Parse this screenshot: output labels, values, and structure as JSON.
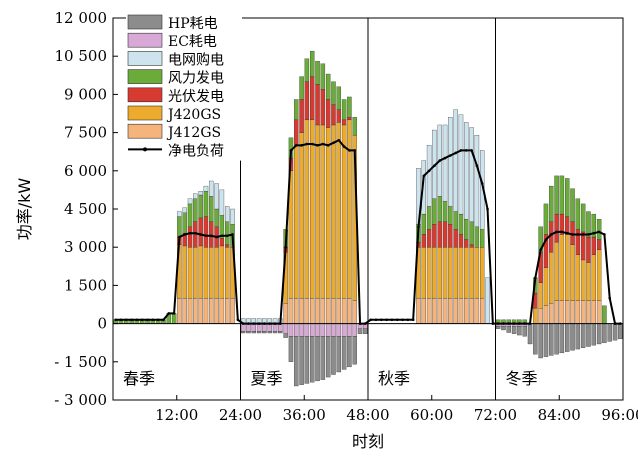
{
  "chart_data": {
    "type": "bar",
    "xlabel": "时刻",
    "ylabel": "功率/kW",
    "xlim": [
      0,
      96
    ],
    "ylim": [
      -3000,
      12000
    ],
    "x_ticks": [
      12,
      24,
      36,
      48,
      60,
      72,
      84,
      96
    ],
    "x_tick_labels": [
      "12:00",
      "24:00",
      "36:00",
      "48:00",
      "60:00",
      "72:00",
      "84:00",
      "96:00"
    ],
    "y_ticks": [
      -3000,
      -1500,
      0,
      1500,
      3000,
      4500,
      6000,
      7500,
      9000,
      10500,
      12000
    ],
    "y_tick_labels": [
      "- 3 000",
      "- 1 500",
      "0",
      "1 500",
      "3 000",
      "4 500",
      "6 000",
      "7 500",
      "9 000",
      "10 500",
      "12 000"
    ],
    "season_dividers": [
      24,
      48,
      72
    ],
    "seasons": [
      "春季",
      "夏季",
      "秋季",
      "冬季"
    ],
    "legend_position": "top-left",
    "series": [
      {
        "name": "HP耗电",
        "color": "#8c8c8c",
        "values": [
          0,
          0,
          0,
          0,
          0,
          0,
          0,
          0,
          0,
          0,
          0,
          0,
          0,
          0,
          0,
          0,
          0,
          0,
          0,
          0,
          0,
          0,
          0,
          0,
          -70,
          -70,
          -70,
          -70,
          -70,
          -70,
          -70,
          -70,
          -150,
          -1000,
          -1950,
          -1900,
          -1850,
          -1800,
          -1750,
          -1700,
          -1600,
          -1500,
          -1400,
          -1300,
          -1200,
          -1100,
          -200,
          -200,
          0,
          0,
          0,
          0,
          0,
          0,
          0,
          0,
          0,
          0,
          0,
          0,
          0,
          0,
          0,
          0,
          0,
          0,
          0,
          0,
          0,
          0,
          0,
          0,
          -100,
          -150,
          -250,
          -300,
          -350,
          -400,
          -800,
          -1200,
          -1350,
          -1300,
          -1250,
          -1200,
          -1150,
          -1100,
          -1050,
          -1000,
          -950,
          -900,
          -850,
          -800,
          -750,
          -700,
          -650,
          -600
        ]
      },
      {
        "name": "EC耗电",
        "color": "#d8a8d6",
        "values": [
          0,
          0,
          0,
          0,
          0,
          0,
          0,
          0,
          0,
          0,
          0,
          0,
          0,
          0,
          0,
          0,
          0,
          0,
          0,
          0,
          0,
          0,
          0,
          0,
          -300,
          -300,
          -300,
          -300,
          -300,
          -300,
          -300,
          -300,
          -400,
          -500,
          -500,
          -500,
          -500,
          -500,
          -500,
          -500,
          -500,
          -500,
          -500,
          -500,
          -500,
          -500,
          -200,
          -200,
          0,
          0,
          0,
          0,
          0,
          0,
          0,
          0,
          0,
          0,
          0,
          0,
          0,
          0,
          0,
          0,
          0,
          0,
          0,
          0,
          0,
          0,
          0,
          0,
          -100,
          -100,
          -100,
          -100,
          -100,
          -100,
          0,
          0,
          0,
          0,
          0,
          0,
          0,
          0,
          0,
          0,
          0,
          0,
          0,
          0,
          0,
          0,
          0,
          0
        ]
      },
      {
        "name": "电网购电",
        "color": "#cde4ee",
        "values": [
          0,
          0,
          0,
          0,
          0,
          0,
          0,
          0,
          0,
          0,
          0,
          0,
          200,
          200,
          200,
          200,
          150,
          200,
          600,
          1000,
          1000,
          600,
          600,
          0,
          200,
          200,
          200,
          200,
          200,
          200,
          200,
          200,
          0,
          0,
          0,
          0,
          0,
          0,
          0,
          0,
          0,
          0,
          0,
          0,
          0,
          0,
          0,
          0,
          0,
          0,
          0,
          0,
          0,
          0,
          0,
          0,
          0,
          2200,
          2100,
          2400,
          2700,
          2800,
          3000,
          3500,
          4000,
          3900,
          3800,
          3700,
          3600,
          3100,
          1800,
          0,
          0,
          0,
          0,
          0,
          0,
          0,
          0,
          0,
          0,
          0,
          0,
          0,
          0,
          0,
          0,
          0,
          0,
          0,
          0,
          0,
          0,
          0
        ]
      },
      {
        "name": "风力发电",
        "color": "#6aab3a",
        "values": [
          150,
          150,
          150,
          150,
          150,
          150,
          150,
          150,
          150,
          150,
          400,
          400,
          800,
          800,
          900,
          900,
          900,
          1000,
          1000,
          700,
          900,
          900,
          900,
          0,
          0,
          0,
          0,
          0,
          0,
          0,
          0,
          0,
          700,
          800,
          800,
          900,
          900,
          1000,
          900,
          1000,
          1000,
          900,
          900,
          800,
          800,
          700,
          0,
          0,
          0,
          0,
          0,
          0,
          0,
          0,
          0,
          0,
          0,
          700,
          800,
          900,
          1000,
          1000,
          800,
          700,
          700,
          800,
          800,
          900,
          800,
          700,
          0,
          0,
          150,
          150,
          150,
          150,
          150,
          150,
          0,
          600,
          1000,
          1200,
          1400,
          1500,
          1500,
          1500,
          1300,
          1200,
          1100,
          1000,
          900,
          800,
          700,
          0,
          0,
          0
        ]
      },
      {
        "name": "光伏发电",
        "color": "#d63a30",
        "values": [
          0,
          0,
          0,
          0,
          0,
          0,
          0,
          0,
          0,
          0,
          0,
          0,
          300,
          500,
          800,
          1000,
          1100,
          1200,
          1000,
          800,
          300,
          100,
          0,
          0,
          0,
          0,
          0,
          0,
          0,
          0,
          0,
          0,
          200,
          500,
          1000,
          1300,
          1500,
          1700,
          1600,
          1400,
          1100,
          800,
          500,
          200,
          100,
          0,
          0,
          0,
          0,
          0,
          0,
          0,
          0,
          0,
          0,
          0,
          0,
          200,
          500,
          700,
          900,
          1000,
          1000,
          900,
          700,
          500,
          300,
          100,
          0,
          0,
          0,
          0,
          0,
          0,
          0,
          0,
          0,
          0,
          0,
          600,
          1200,
          1300,
          1200,
          1100,
          800,
          700,
          900,
          1000,
          1100,
          1000,
          700,
          400,
          0,
          0,
          0,
          0
        ]
      },
      {
        "name": "J420GS",
        "color": "#ecab2c",
        "values": [
          0,
          0,
          0,
          0,
          0,
          0,
          0,
          0,
          0,
          0,
          0,
          0,
          2100,
          2050,
          2000,
          2000,
          2050,
          2000,
          2000,
          2000,
          2050,
          2000,
          2000,
          0,
          0,
          0,
          0,
          0,
          0,
          0,
          0,
          0,
          2000,
          5000,
          6000,
          6500,
          7000,
          7000,
          6800,
          6800,
          6700,
          6800,
          6900,
          6800,
          7000,
          6500,
          0,
          0,
          0,
          0,
          0,
          0,
          0,
          0,
          0,
          0,
          0,
          2000,
          2000,
          2000,
          2000,
          2000,
          2000,
          2000,
          2000,
          2000,
          2000,
          2000,
          2000,
          2000,
          0,
          0,
          0,
          0,
          0,
          0,
          0,
          0,
          0,
          600,
          1000,
          1500,
          2000,
          2300,
          2600,
          2600,
          2200,
          1800,
          1600,
          1500,
          1800,
          2000,
          0,
          0,
          0,
          0
        ]
      },
      {
        "name": "J412GS",
        "color": "#f4b47c",
        "values": [
          0,
          0,
          0,
          0,
          0,
          0,
          0,
          0,
          0,
          0,
          0,
          0,
          1000,
          1000,
          1000,
          1000,
          1000,
          1000,
          1000,
          1000,
          1000,
          1000,
          1000,
          0,
          0,
          0,
          0,
          0,
          0,
          0,
          0,
          0,
          800,
          1000,
          1000,
          1000,
          1000,
          1000,
          1000,
          1000,
          1000,
          1000,
          1000,
          1000,
          1000,
          900,
          0,
          0,
          0,
          0,
          0,
          0,
          0,
          0,
          0,
          0,
          0,
          1000,
          1000,
          1000,
          1000,
          1000,
          1000,
          1000,
          1000,
          1000,
          1000,
          1000,
          1000,
          1000,
          0,
          0,
          0,
          0,
          0,
          0,
          0,
          0,
          0,
          0,
          600,
          700,
          800,
          900,
          900,
          900,
          900,
          900,
          900,
          900,
          900,
          900,
          0,
          0,
          0,
          0
        ]
      },
      {
        "name": "净电负荷",
        "color": "#000000",
        "type": "line",
        "values": [
          150,
          150,
          150,
          150,
          150,
          150,
          150,
          150,
          150,
          150,
          400,
          400,
          3400,
          3500,
          3550,
          3550,
          3500,
          3450,
          3450,
          3400,
          3450,
          3450,
          3500,
          150,
          0,
          0,
          0,
          0,
          0,
          0,
          0,
          0,
          3000,
          6800,
          7000,
          7000,
          7050,
          7050,
          7000,
          7050,
          7000,
          7100,
          7200,
          6950,
          6800,
          6800,
          0,
          0,
          150,
          150,
          150,
          150,
          150,
          150,
          150,
          150,
          150,
          3800,
          5800,
          6000,
          6200,
          6400,
          6500,
          6600,
          6700,
          6800,
          6800,
          6800,
          6200,
          5500,
          4500,
          0,
          0,
          0,
          0,
          0,
          0,
          0,
          0,
          1800,
          2900,
          3300,
          3500,
          3600,
          3600,
          3550,
          3500,
          3500,
          3500,
          3500,
          3550,
          3600,
          3500,
          1000,
          0,
          0
        ]
      }
    ]
  }
}
